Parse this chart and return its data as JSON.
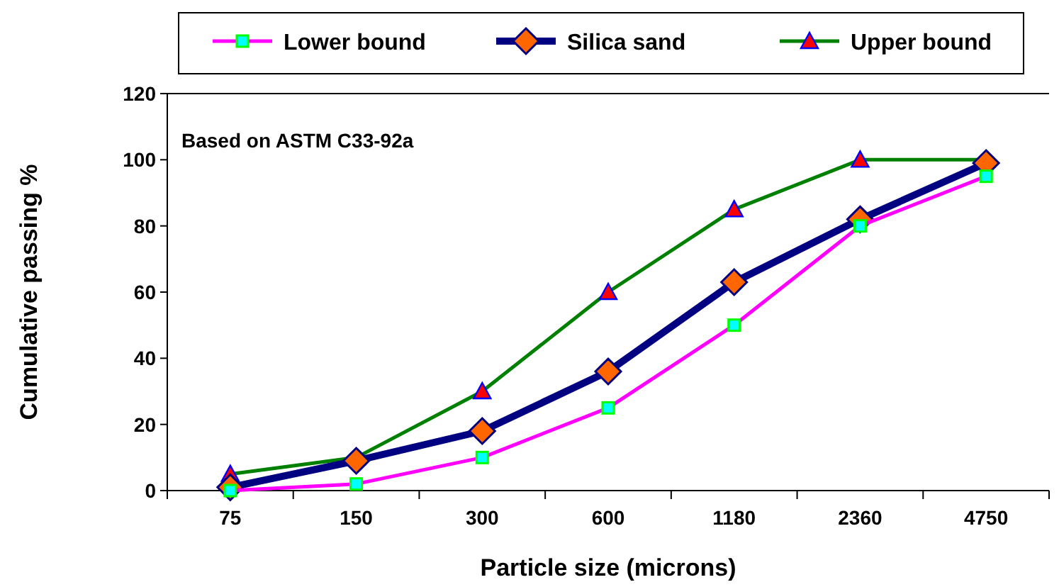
{
  "chart_data": {
    "type": "line",
    "xlabel": "Particle size (microns)",
    "ylabel": "Cumulative passing %",
    "categories": [
      "75",
      "150",
      "300",
      "600",
      "1180",
      "2360",
      "4750"
    ],
    "series": [
      {
        "name": "Lower bound",
        "color": "#ff00ff",
        "marker": "square",
        "values": [
          0,
          2,
          10,
          25,
          50,
          80,
          95
        ]
      },
      {
        "name": "Silica sand",
        "color": "#000080",
        "marker": "diamond",
        "values": [
          1,
          9,
          18,
          36,
          63,
          82,
          99
        ]
      },
      {
        "name": "Upper bound",
        "color": "#008000",
        "marker": "triangle",
        "values": [
          5,
          10,
          30,
          60,
          85,
          100,
          100
        ]
      }
    ],
    "ylim": [
      0,
      120
    ],
    "yticks": [
      0,
      20,
      40,
      60,
      80,
      100,
      120
    ],
    "grid": false,
    "legend": "top",
    "annotations": [
      "Based on ASTM C33-92a"
    ]
  }
}
